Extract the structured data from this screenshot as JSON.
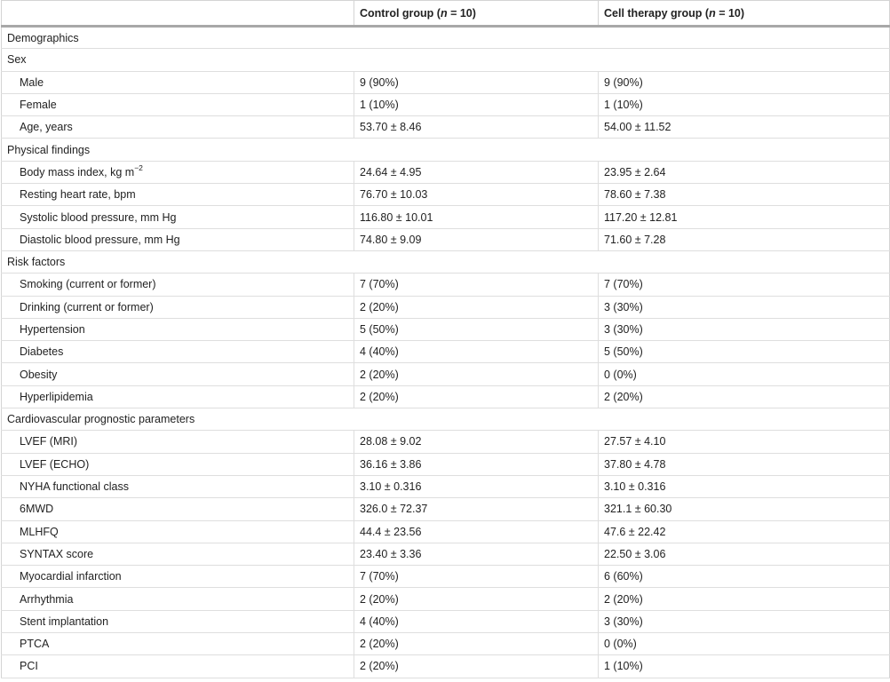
{
  "header": {
    "col1": "",
    "col2_prefix": "Control group (",
    "col2_n": "n",
    "col2_suffix": " = 10)",
    "col3_prefix": "Cell therapy group (",
    "col3_n": "n",
    "col3_suffix": " = 10)"
  },
  "rows": [
    {
      "type": "section",
      "label": "Demographics"
    },
    {
      "type": "section",
      "label": "Sex"
    },
    {
      "type": "data",
      "label": "Male",
      "control": "9 (90%)",
      "cell": "9 (90%)"
    },
    {
      "type": "data",
      "label": "Female",
      "control": "1 (10%)",
      "cell": "1 (10%)"
    },
    {
      "type": "data",
      "label": "Age, years",
      "control": "53.70 ± 8.46",
      "cell": "54.00 ± 11.52"
    },
    {
      "type": "section",
      "label": "Physical findings"
    },
    {
      "type": "data",
      "label": "Body mass index, kg m",
      "sup": "−2",
      "control": "24.64 ± 4.95",
      "cell": "23.95 ± 2.64"
    },
    {
      "type": "data",
      "label": "Resting heart rate, bpm",
      "control": "76.70 ± 10.03",
      "cell": "78.60 ± 7.38"
    },
    {
      "type": "data",
      "label": "Systolic blood pressure, mm Hg",
      "control": "116.80 ± 10.01",
      "cell": "117.20 ± 12.81"
    },
    {
      "type": "data",
      "label": "Diastolic blood pressure, mm Hg",
      "control": "74.80 ± 9.09",
      "cell": "71.60 ± 7.28"
    },
    {
      "type": "section",
      "label": "Risk factors"
    },
    {
      "type": "data",
      "label": "Smoking (current or former)",
      "control": "7 (70%)",
      "cell": "7 (70%)"
    },
    {
      "type": "data",
      "label": "Drinking (current or former)",
      "control": "2 (20%)",
      "cell": "3 (30%)"
    },
    {
      "type": "data",
      "label": "Hypertension",
      "control": "5 (50%)",
      "cell": "3 (30%)"
    },
    {
      "type": "data",
      "label": "Diabetes",
      "control": "4 (40%)",
      "cell": "5 (50%)"
    },
    {
      "type": "data",
      "label": "Obesity",
      "control": "2 (20%)",
      "cell": "0 (0%)"
    },
    {
      "type": "data",
      "label": "Hyperlipidemia",
      "control": "2 (20%)",
      "cell": "2 (20%)"
    },
    {
      "type": "section",
      "label": "Cardiovascular prognostic parameters"
    },
    {
      "type": "data",
      "label": "LVEF (MRI)",
      "control": "28.08 ± 9.02",
      "cell": "27.57 ± 4.10"
    },
    {
      "type": "data",
      "label": "LVEF (ECHO)",
      "control": "36.16 ± 3.86",
      "cell": "37.80 ± 4.78"
    },
    {
      "type": "data",
      "label": "NYHA functional class",
      "control": "3.10 ± 0.316",
      "cell": "3.10 ± 0.316"
    },
    {
      "type": "data",
      "label": "6MWD",
      "control": "326.0 ± 72.37",
      "cell": "321.1 ± 60.30"
    },
    {
      "type": "data",
      "label": "MLHFQ",
      "control": "44.4 ± 23.56",
      "cell": "47.6 ± 22.42"
    },
    {
      "type": "data",
      "label": "SYNTAX score",
      "control": "23.40 ± 3.36",
      "cell": "22.50 ± 3.06"
    },
    {
      "type": "data",
      "label": "Myocardial infarction",
      "control": "7 (70%)",
      "cell": "6 (60%)"
    },
    {
      "type": "data",
      "label": "Arrhythmia",
      "control": "2 (20%)",
      "cell": "2 (20%)"
    },
    {
      "type": "data",
      "label": "Stent implantation",
      "control": "4 (40%)",
      "cell": "3 (30%)"
    },
    {
      "type": "data",
      "label": "PTCA",
      "control": "2 (20%)",
      "cell": "0 (0%)"
    },
    {
      "type": "data",
      "label": "PCI",
      "control": "2 (20%)",
      "cell": "1 (10%)"
    }
  ]
}
